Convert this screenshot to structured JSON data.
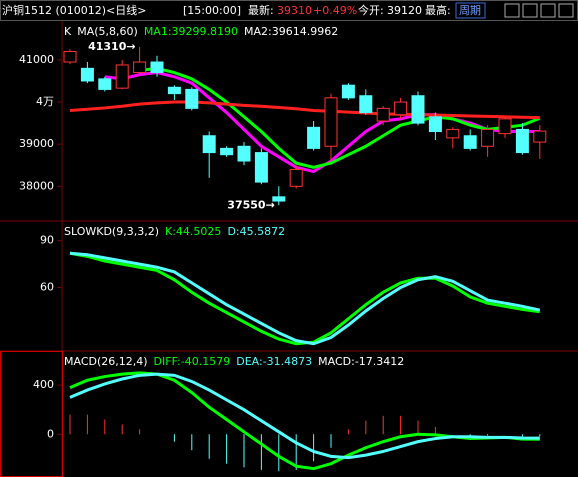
{
  "header": {
    "symbol": "沪铜1512 (010012)<日线>",
    "time": "[15:00:00]",
    "latest_label": "最新:",
    "latest": "39310",
    "change": "+0.49%",
    "open_label": "今开:",
    "open": "39120",
    "high_label": "最高:",
    "period_button": "周期"
  },
  "chart_data": [
    {
      "type": "candlestick",
      "title": "K",
      "subtitle": "MA(5,8,60)",
      "open": [
        40950,
        40800,
        40550,
        40330,
        40700,
        40950,
        40350,
        40300,
        39200,
        38900,
        38950,
        38800,
        37750,
        38000,
        39400,
        38950,
        40400,
        40150,
        39550,
        39700,
        40150,
        39650,
        39150,
        39200,
        38950,
        39250,
        39350,
        39050
      ],
      "high": [
        41250,
        40950,
        40600,
        41000,
        41310,
        41100,
        40400,
        40350,
        39300,
        38950,
        39050,
        38900,
        38000,
        38500,
        39550,
        40200,
        40450,
        40300,
        39900,
        40100,
        40250,
        39750,
        39400,
        39350,
        39450,
        39650,
        39500,
        39450
      ],
      "low": [
        40900,
        40450,
        40250,
        40300,
        40650,
        40600,
        40050,
        39800,
        38200,
        38700,
        38500,
        38050,
        37550,
        37950,
        38850,
        38600,
        40050,
        39700,
        39450,
        39600,
        39450,
        39100,
        38900,
        38850,
        38700,
        39150,
        38750,
        38650
      ],
      "close": [
        41200,
        40500,
        40300,
        40880,
        40950,
        40700,
        40200,
        39850,
        38800,
        38750,
        38600,
        38100,
        37650,
        38400,
        38900,
        40100,
        40100,
        39750,
        39850,
        40000,
        39500,
        39300,
        39350,
        38900,
        39350,
        39600,
        38800,
        39310
      ],
      "up_color": "#ff3232",
      "down_color": "#54ffff",
      "series": [
        {
          "name": "MA1:39299.8190",
          "color": "#ff00ff",
          "values": [
            null,
            null,
            40600,
            40550,
            40650,
            40700,
            40600,
            40450,
            40100,
            39750,
            39350,
            38950,
            38700,
            38450,
            38350,
            38600,
            38950,
            39300,
            39550,
            39600,
            39700,
            39700,
            39600,
            39500,
            39350,
            39300,
            39300,
            39299.819
          ]
        },
        {
          "name": "MA2:39614.9962",
          "color": "#00ff00",
          "values": [
            null,
            null,
            null,
            null,
            40750,
            40800,
            40700,
            40550,
            40300,
            40000,
            39650,
            39300,
            38900,
            38550,
            38450,
            38550,
            38750,
            38950,
            39200,
            39450,
            39550,
            39650,
            39600,
            39450,
            39350,
            39400,
            39450,
            39614.9962
          ]
        },
        {
          "color": "#ff2020",
          "values": [
            39800,
            39830,
            39860,
            39900,
            39950,
            39980,
            40000,
            40000,
            39980,
            39950,
            39920,
            39900,
            39870,
            39840,
            39800,
            39780,
            39760,
            39740,
            39720,
            39710,
            39700,
            39690,
            39680,
            39670,
            39660,
            39650,
            39640,
            39630
          ]
        }
      ],
      "annotations": [
        {
          "text": "41310→",
          "index": 4,
          "value": 41310
        },
        {
          "text": "37550→",
          "index": 12,
          "value": 37550
        }
      ],
      "ylim": [
        37200,
        41900
      ],
      "yticks": [
        38000,
        39000,
        {
          "value": 40000,
          "label": "4万"
        },
        41000
      ]
    },
    {
      "type": "line",
      "title": "SLOWKD(9,3,3,2)",
      "series": [
        {
          "name": "K:44.5025",
          "color": "#00ff00",
          "values": [
            82,
            80,
            77,
            75,
            73,
            71,
            65,
            57,
            50,
            44,
            38,
            32,
            27,
            24,
            25,
            31,
            40,
            49,
            57,
            63,
            66,
            66,
            61,
            54,
            50,
            48,
            46,
            44.5025
          ]
        },
        {
          "name": "D:45.5872",
          "color": "#54ffff",
          "values": [
            82,
            81,
            79,
            77,
            75,
            73,
            70,
            63,
            56,
            49,
            43,
            37,
            31,
            26,
            24,
            28,
            36,
            45,
            53,
            60,
            65,
            67,
            64,
            58,
            52,
            50,
            48,
            45.5872
          ]
        }
      ],
      "ylim": [
        20,
        102
      ],
      "yticks": [
        60,
        90
      ]
    },
    {
      "type": "macd",
      "title": "MACD(26,12,4)",
      "series": [
        {
          "name": "DIFF:-40.1579",
          "color": "#00ff00",
          "values": [
            380,
            440,
            470,
            490,
            500,
            490,
            440,
            340,
            220,
            120,
            20,
            -80,
            -180,
            -260,
            -280,
            -240,
            -170,
            -110,
            -60,
            -20,
            0,
            -5,
            -20,
            -35,
            -30,
            -25,
            -40,
            -40.1579
          ]
        },
        {
          "name": "DEA:-31.4873",
          "color": "#54ffff",
          "values": [
            300,
            360,
            410,
            450,
            480,
            490,
            480,
            430,
            360,
            280,
            200,
            110,
            20,
            -70,
            -140,
            -180,
            -190,
            -170,
            -140,
            -100,
            -60,
            -35,
            -20,
            -20,
            -25,
            -25,
            -30,
            -31.4873
          ]
        }
      ],
      "bars": {
        "name": "MACD:-17.3412",
        "up_color": "#ff3232",
        "down_color": "#54ffff",
        "values": [
          160,
          160,
          120,
          80,
          40,
          0,
          -60,
          -130,
          -200,
          -240,
          -270,
          -290,
          -300,
          -290,
          -220,
          -110,
          40,
          110,
          150,
          150,
          110,
          60,
          0,
          -30,
          -10,
          0,
          -20,
          -17.3412
        ]
      },
      "ylim": [
        -340,
        670
      ],
      "yticks": [
        0,
        400
      ]
    }
  ]
}
